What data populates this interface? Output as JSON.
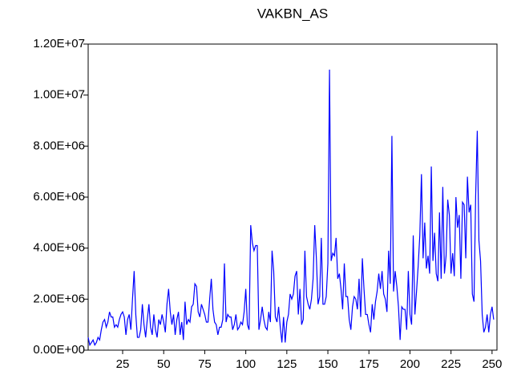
{
  "chart_data": {
    "type": "line",
    "title": "VAKBN_AS",
    "x": [
      4,
      5,
      6,
      7,
      8,
      9,
      10,
      11,
      12,
      13,
      14,
      15,
      16,
      17,
      18,
      19,
      20,
      21,
      22,
      23,
      24,
      25,
      26,
      27,
      28,
      29,
      30,
      31,
      32,
      33,
      34,
      35,
      36,
      37,
      38,
      39,
      40,
      41,
      42,
      43,
      44,
      45,
      46,
      47,
      48,
      49,
      50,
      51,
      52,
      53,
      54,
      55,
      56,
      57,
      58,
      59,
      60,
      61,
      62,
      63,
      64,
      65,
      66,
      67,
      68,
      69,
      70,
      71,
      72,
      73,
      74,
      75,
      76,
      77,
      78,
      79,
      80,
      81,
      82,
      83,
      84,
      85,
      86,
      87,
      88,
      89,
      90,
      91,
      92,
      93,
      94,
      95,
      96,
      97,
      98,
      99,
      100,
      101,
      102,
      103,
      104,
      105,
      106,
      107,
      108,
      109,
      110,
      111,
      112,
      113,
      114,
      115,
      116,
      117,
      118,
      119,
      120,
      121,
      122,
      123,
      124,
      125,
      126,
      127,
      128,
      129,
      130,
      131,
      132,
      133,
      134,
      135,
      136,
      137,
      138,
      139,
      140,
      141,
      142,
      143,
      144,
      145,
      146,
      147,
      148,
      149,
      150,
      151,
      152,
      153,
      154,
      155,
      156,
      157,
      158,
      159,
      160,
      161,
      162,
      163,
      164,
      165,
      166,
      167,
      168,
      169,
      170,
      171,
      172,
      173,
      174,
      175,
      176,
      177,
      178,
      179,
      180,
      181,
      182,
      183,
      184,
      185,
      186,
      187,
      188,
      189,
      190,
      191,
      192,
      193,
      194,
      195,
      196,
      197,
      198,
      199,
      200,
      201,
      202,
      203,
      204,
      205,
      206,
      207,
      208,
      209,
      210,
      211,
      212,
      213,
      214,
      215,
      216,
      217,
      218,
      219,
      220,
      221,
      222,
      223,
      224,
      225,
      226,
      227,
      228,
      229,
      230,
      231,
      232,
      233,
      234,
      235,
      236,
      237,
      238,
      239,
      240,
      241,
      242,
      243,
      244,
      245,
      246,
      247,
      248,
      249,
      250,
      251
    ],
    "series": [
      {
        "name": "VAKBN_AS",
        "color": "#0000ff",
        "values": [
          500000.0,
          200000.0,
          300000.0,
          400000.0,
          200000.0,
          300000.0,
          500000.0,
          400000.0,
          800000.0,
          1100000.0,
          1200000.0,
          900000.0,
          1100000.0,
          1500000.0,
          1300000.0,
          1300000.0,
          900000.0,
          1000000.0,
          900000.0,
          1200000.0,
          1400000.0,
          1500000.0,
          1300000.0,
          600000.0,
          1200000.0,
          1400000.0,
          800000.0,
          2000000.0,
          3100000.0,
          1400000.0,
          500000.0,
          500000.0,
          800000.0,
          1800000.0,
          1000000.0,
          500000.0,
          1200000.0,
          1800000.0,
          900000.0,
          600000.0,
          1400000.0,
          800000.0,
          500000.0,
          1200000.0,
          1000000.0,
          1400000.0,
          1100000.0,
          700000.0,
          1800000.0,
          2400000.0,
          1500000.0,
          1000000.0,
          1400000.0,
          600000.0,
          1200000.0,
          1500000.0,
          600000.0,
          1100000.0,
          400000.0,
          1900000.0,
          1000000.0,
          1200000.0,
          1100000.0,
          1700000.0,
          1800000.0,
          2600000.0,
          2500000.0,
          1500000.0,
          1300000.0,
          1800000.0,
          1600000.0,
          1400000.0,
          1100000.0,
          1100000.0,
          2000000.0,
          2800000.0,
          1600000.0,
          1100000.0,
          1000000.0,
          600000.0,
          900000.0,
          900000.0,
          1200000.0,
          3400000.0,
          1100000.0,
          1400000.0,
          1300000.0,
          1300000.0,
          800000.0,
          1000000.0,
          1400000.0,
          800000.0,
          900000.0,
          1100000.0,
          1000000.0,
          1500000.0,
          2400000.0,
          1000000.0,
          800000.0,
          4900000.0,
          4200000.0,
          3900000.0,
          4100000.0,
          4100000.0,
          800000.0,
          1200000.0,
          1700000.0,
          1200000.0,
          900000.0,
          800000.0,
          1500000.0,
          1100000.0,
          3900000.0,
          3100000.0,
          1300000.0,
          1100000.0,
          1700000.0,
          900000.0,
          300000.0,
          1300000.0,
          300000.0,
          1100000.0,
          1400000.0,
          2200000.0,
          2000000.0,
          2200000.0,
          2900000.0,
          3100000.0,
          1400000.0,
          2400000.0,
          1000000.0,
          1200000.0,
          3900000.0,
          2100000.0,
          1800000.0,
          1600000.0,
          2000000.0,
          2800000.0,
          4900000.0,
          3600000.0,
          1800000.0,
          2100000.0,
          4400000.0,
          1800000.0,
          1800000.0,
          2100000.0,
          3400000.0,
          11000000.0,
          3500000.0,
          3800000.0,
          3700000.0,
          4400000.0,
          2800000.0,
          3000000.0,
          2400000.0,
          1600000.0,
          3400000.0,
          2100000.0,
          2100000.0,
          1200000.0,
          800000.0,
          1700000.0,
          2100000.0,
          2000000.0,
          1600000.0,
          2800000.0,
          1300000.0,
          3600000.0,
          2400000.0,
          1400000.0,
          1400000.0,
          1000000.0,
          700000.0,
          1800000.0,
          1200000.0,
          1900000.0,
          2300000.0,
          3000000.0,
          2400000.0,
          3100000.0,
          2200000.0,
          2000000.0,
          1500000.0,
          3900000.0,
          2600000.0,
          8400000.0,
          2300000.0,
          3100000.0,
          2500000.0,
          1700000.0,
          400000.0,
          1700000.0,
          1600000.0,
          1600000.0,
          800000.0,
          3100000.0,
          1400000.0,
          1000000.0,
          4500000.0,
          1400000.0,
          2300000.0,
          3300000.0,
          4500000.0,
          6900000.0,
          3600000.0,
          5000000.0,
          3200000.0,
          3700000.0,
          3000000.0,
          7200000.0,
          3500000.0,
          4600000.0,
          3000000.0,
          2700000.0,
          5400000.0,
          2800000.0,
          6400000.0,
          3000000.0,
          3700000.0,
          5900000.0,
          5300000.0,
          3000000.0,
          3800000.0,
          2900000.0,
          6000000.0,
          4800000.0,
          5300000.0,
          2800000.0,
          5800000.0,
          5700000.0,
          3600000.0,
          6800000.0,
          5400000.0,
          5700000.0,
          2200000.0,
          1900000.0,
          6000000.0,
          8600000.0,
          4300000.0,
          3500000.0,
          1400000.0,
          700000.0,
          900000.0,
          1400000.0,
          700000.0,
          1400000.0,
          1700000.0,
          1200000.0
        ]
      }
    ],
    "xlim": [
      4,
      253
    ],
    "xticks": [
      25,
      50,
      75,
      100,
      125,
      150,
      175,
      200,
      225,
      250
    ],
    "ylim": [
      0,
      12000000
    ],
    "yticks": [
      {
        "value": 0,
        "label": "0.00E+00"
      },
      {
        "value": 2000000,
        "label": "2.00E+06"
      },
      {
        "value": 4000000,
        "label": "4.00E+06"
      },
      {
        "value": 6000000,
        "label": "6.00E+06"
      },
      {
        "value": 8000000,
        "label": "8.00E+06"
      },
      {
        "value": 10000000,
        "label": "1.00E+07"
      },
      {
        "value": 12000000,
        "label": "1.20E+07"
      }
    ]
  }
}
